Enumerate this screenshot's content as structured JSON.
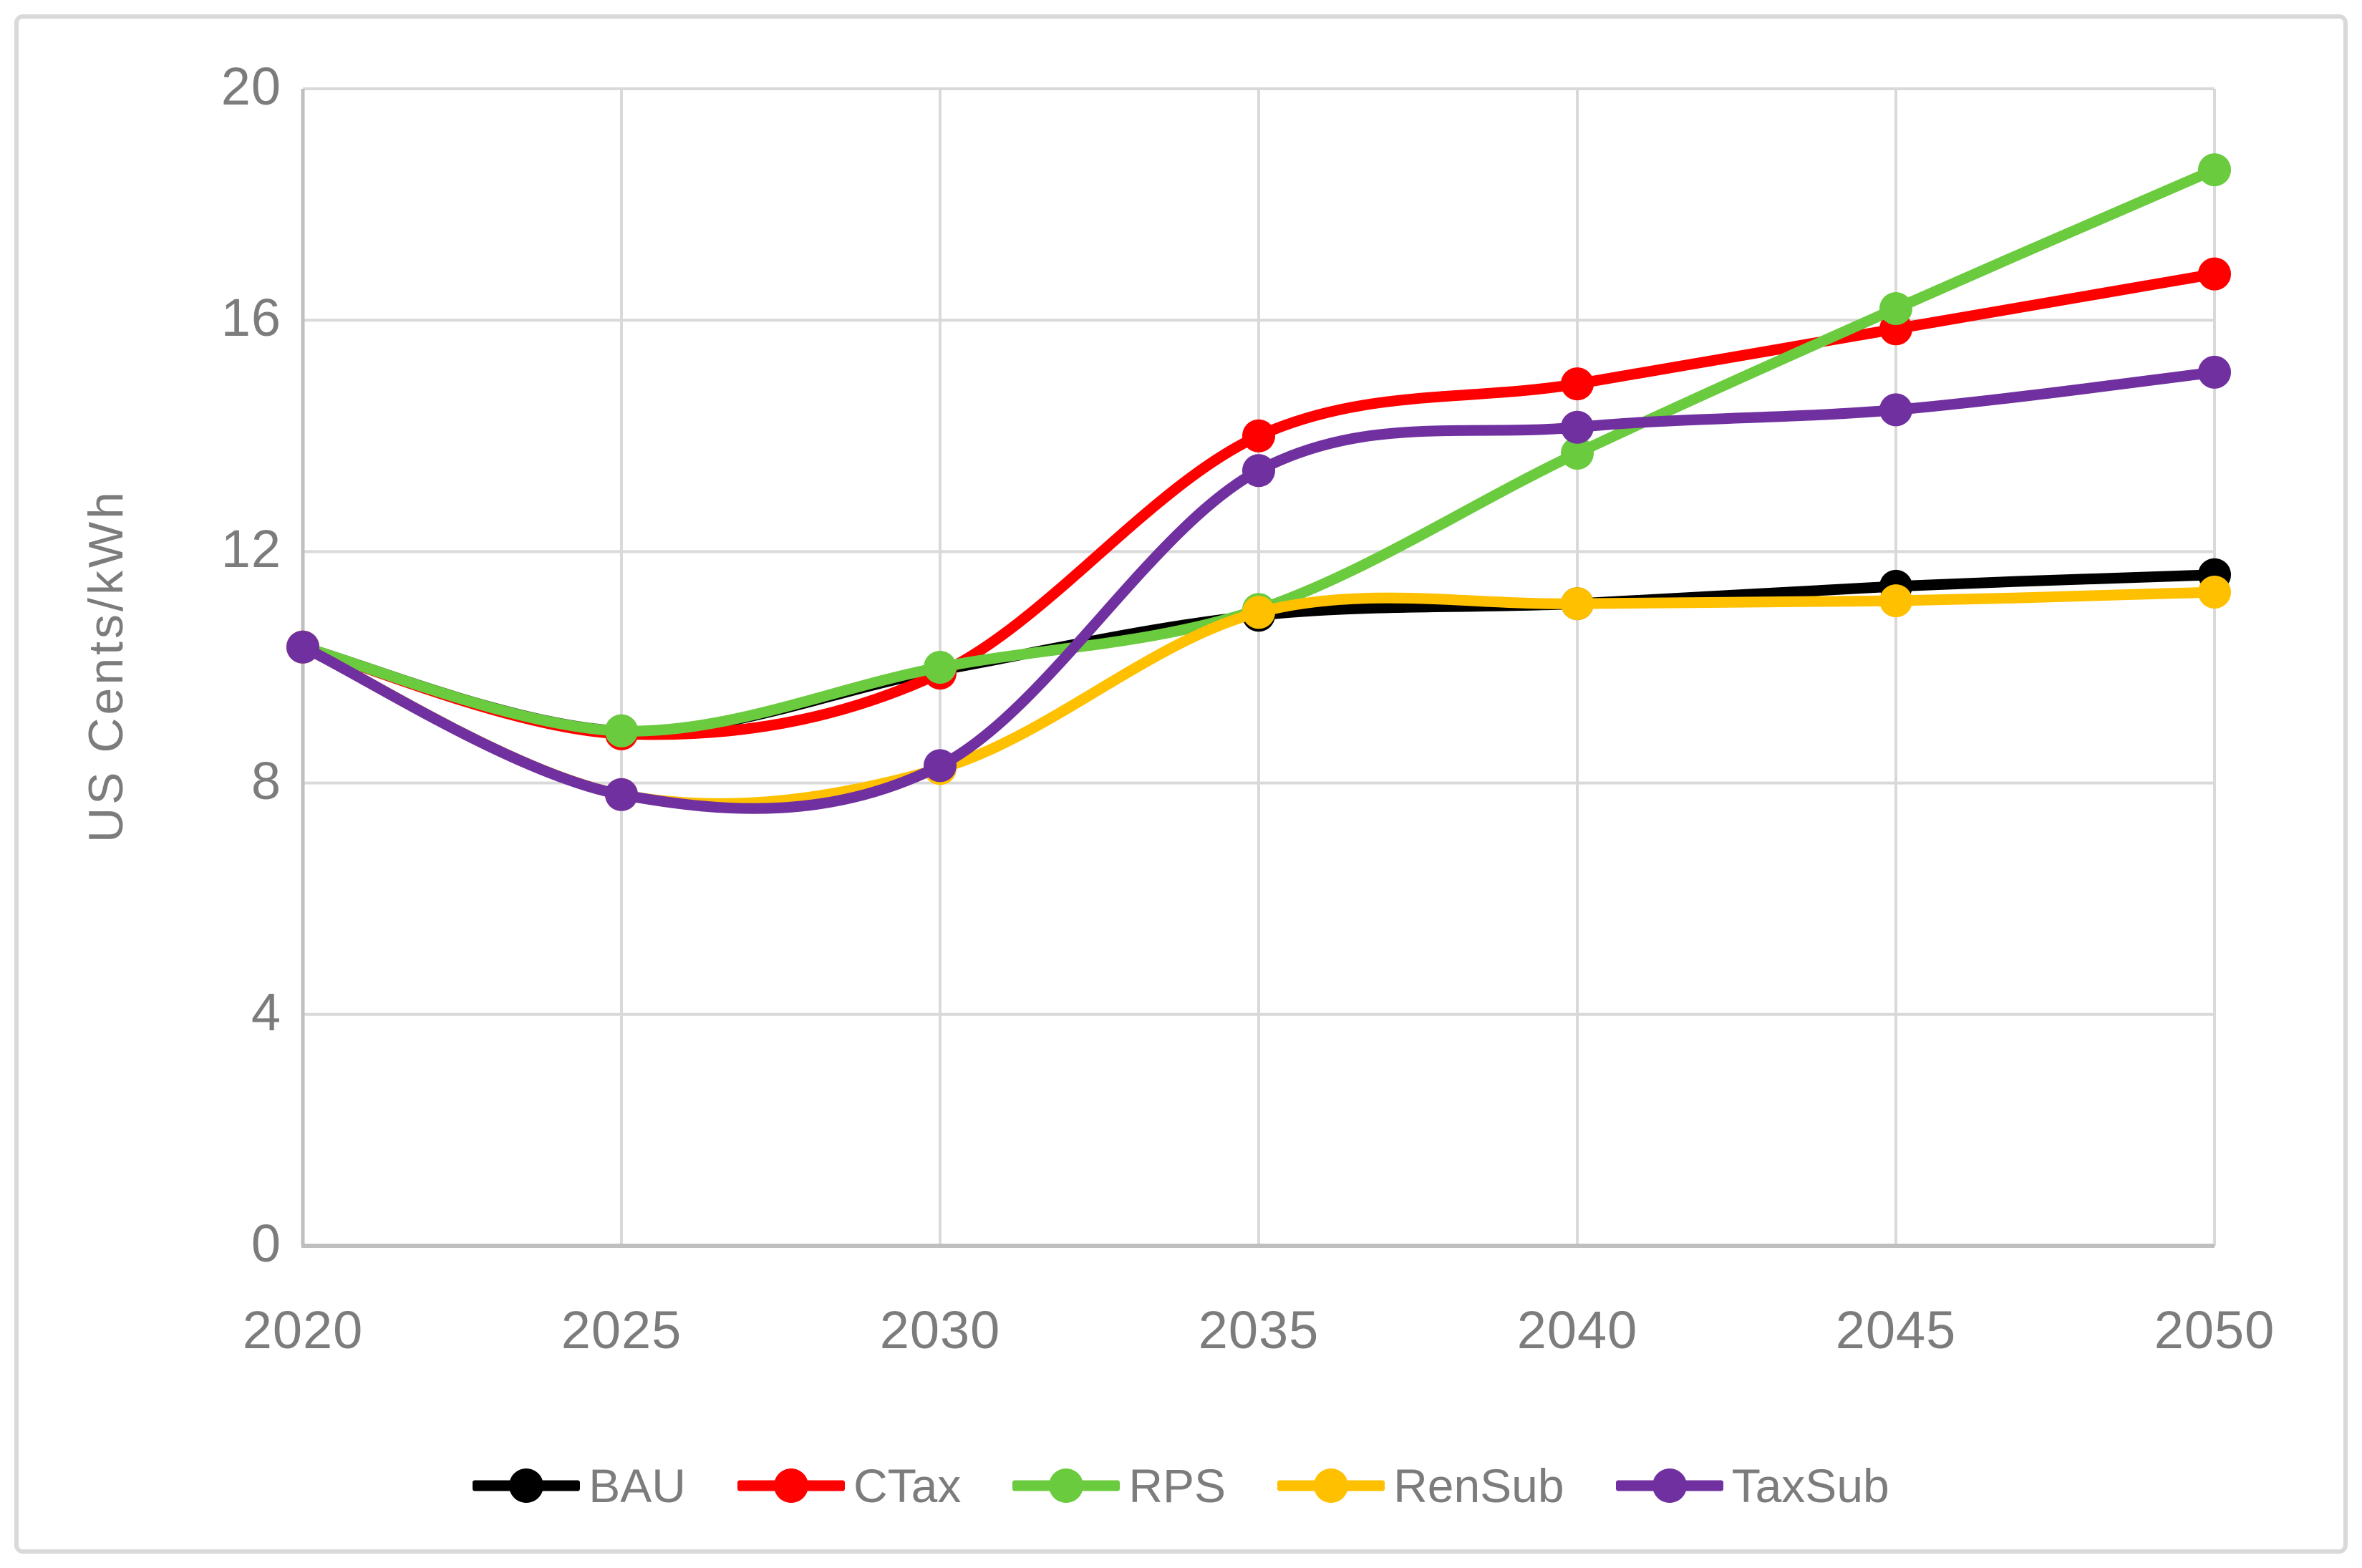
{
  "figure": {
    "background": "#FFFFFF",
    "frame_color": "#D9D9D9"
  },
  "y_axis": {
    "title": "US Cents/kWh",
    "ticks": [
      "0",
      "4",
      "8",
      "12",
      "16",
      "20"
    ],
    "min": 0,
    "max": 20,
    "tick_color": "#7C7C7C"
  },
  "x_axis": {
    "ticks": [
      "2020",
      "2025",
      "2030",
      "2035",
      "2040",
      "2045",
      "2050"
    ],
    "min": 2020,
    "max": 2050,
    "tick_color": "#7C7C7C"
  },
  "grid": {
    "gridline_color": "#D9D9D9",
    "axis_line_color": "#BFBFBF"
  },
  "legend": {
    "position": "bottom",
    "items": [
      "BAU",
      "CTax",
      "RPS",
      "RenSub",
      "TaxSub"
    ]
  },
  "chart_data": {
    "type": "line",
    "title": "",
    "xlabel": "",
    "ylabel": "US Cents/kWh",
    "x": [
      2020,
      2025,
      2030,
      2035,
      2040,
      2045,
      2050
    ],
    "xlim": [
      2020,
      2050
    ],
    "ylim": [
      0,
      20
    ],
    "grid": true,
    "smooth": true,
    "markers": "circle",
    "legend_position": "bottom",
    "series": [
      {
        "name": "BAU",
        "color": "#000000",
        "values": [
          10.35,
          8.9,
          9.95,
          10.9,
          11.1,
          11.4,
          11.6
        ]
      },
      {
        "name": "CTax",
        "color": "#FF0000",
        "values": [
          10.35,
          8.85,
          9.9,
          14.0,
          14.9,
          15.85,
          16.8
        ]
      },
      {
        "name": "RPS",
        "color": "#6BCB3E",
        "values": [
          10.35,
          8.9,
          10.0,
          11.0,
          13.7,
          16.2,
          18.6
        ]
      },
      {
        "name": "RenSub",
        "color": "#FFC000",
        "values": [
          10.35,
          7.8,
          8.25,
          10.95,
          11.1,
          11.15,
          11.3
        ]
      },
      {
        "name": "TaxSub",
        "color": "#7030A0",
        "values": [
          10.35,
          7.8,
          8.3,
          13.4,
          14.15,
          14.45,
          15.1
        ]
      }
    ]
  }
}
